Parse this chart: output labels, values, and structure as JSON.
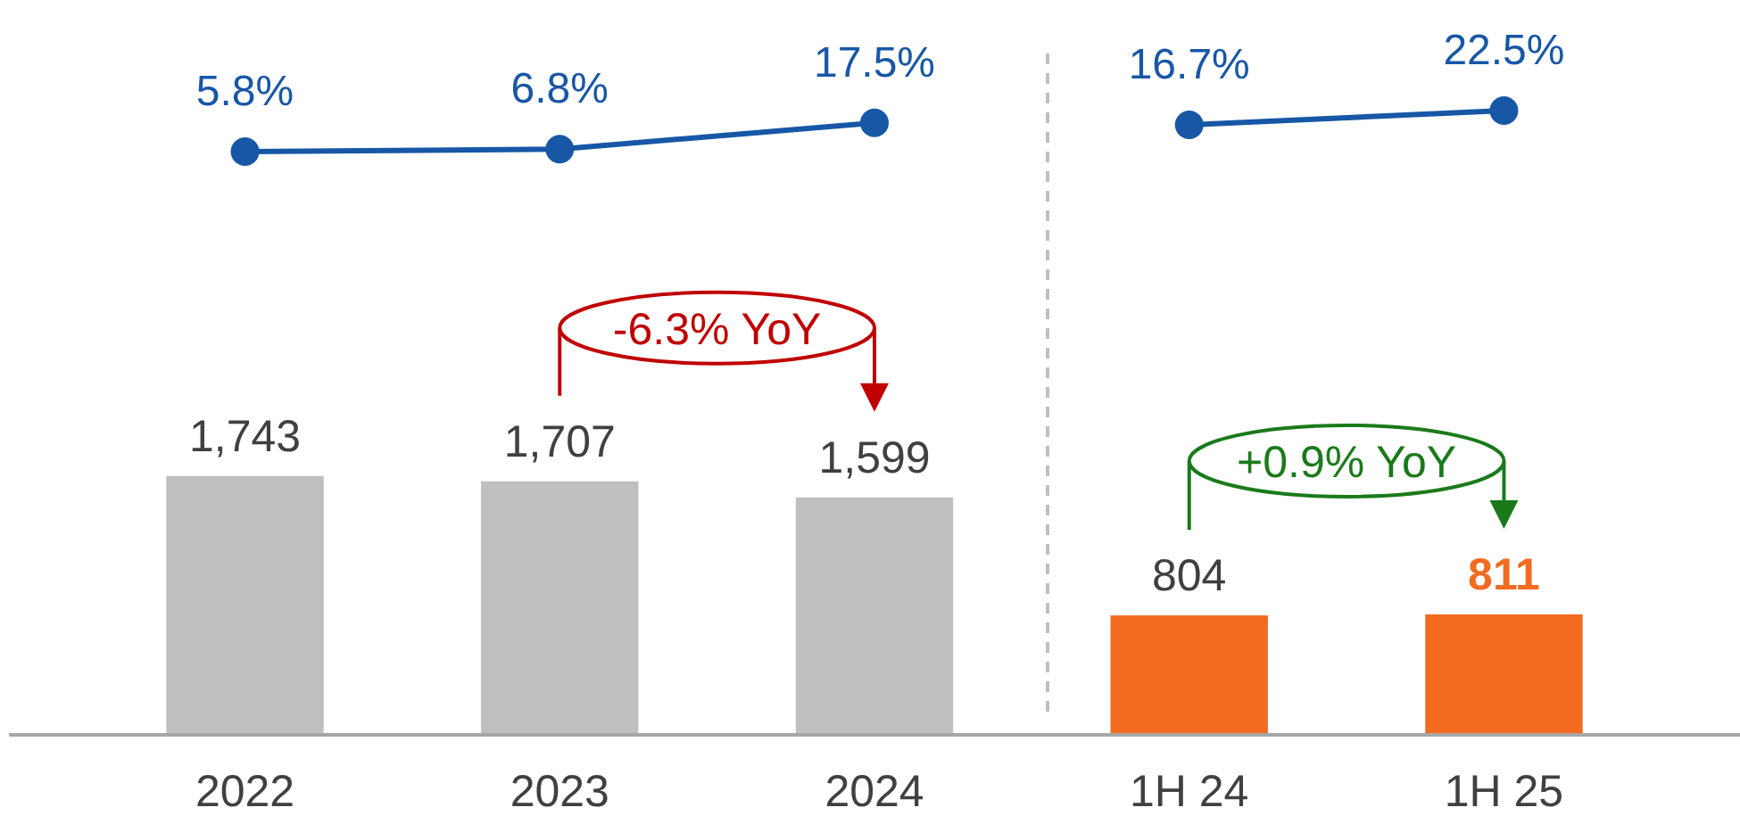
{
  "chart_data": [
    {
      "type": "line",
      "categories": [
        null,
        null,
        null,
        null,
        null
      ],
      "marker": "circle",
      "line_style": "solid",
      "series": [
        {
          "color": "#1757a6",
          "values": [
            5.8,
            6.8,
            17.5,
            null,
            null
          ],
          "value_labels": [
            "5.8%",
            "6.8%",
            "17.5%",
            null,
            null
          ]
        },
        {
          "color": "#1757a6",
          "values": [
            null,
            null,
            null,
            16.7,
            22.5
          ],
          "value_labels": [
            null,
            null,
            null,
            "16.7%",
            "22.5%"
          ]
        }
      ]
    },
    {
      "type": "bar",
      "categories": [
        "2022",
        "2023",
        "2024",
        "1H 24",
        "1H 25"
      ],
      "tick_labels": "x",
      "colors": [
        "#bfbfbf",
        "#bfbfbf",
        "#bfbfbf",
        "#f26b21",
        "#f26b21"
      ],
      "values": [
        1743,
        1707,
        1599,
        804,
        811
      ],
      "value_labels": [
        "1,743",
        "1,707",
        "1,599",
        "804",
        "811"
      ],
      "annotations": [
        "-6.3% YoY",
        "+0.9% YoY"
      ]
    }
  ]
}
